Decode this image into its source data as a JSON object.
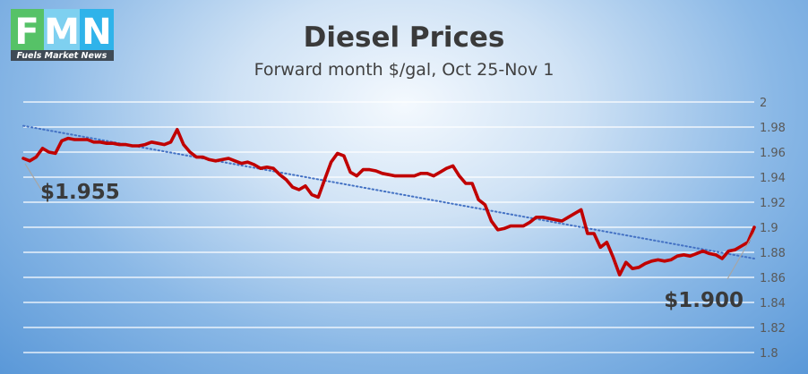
{
  "logo": {
    "letters": [
      "F",
      "M",
      "N"
    ],
    "text": "Fuels Market News",
    "colors": [
      "#56c267",
      "#7ed0f0",
      "#2fb3ea"
    ]
  },
  "chart_data": {
    "type": "line",
    "title": "Diesel Prices",
    "subtitle": "Forward month $/gal, Oct 25-Nov 1",
    "ylim": [
      1.8,
      2.0
    ],
    "yticks": [
      "2",
      "1.98",
      "1.96",
      "1.94",
      "1.92",
      "1.9",
      "1.88",
      "1.86",
      "1.84",
      "1.82",
      "1.8"
    ],
    "grid": true,
    "series": [
      {
        "color": "#c00000",
        "values": [
          1.955,
          1.953,
          1.956,
          1.963,
          1.96,
          1.959,
          1.969,
          1.971,
          1.97,
          1.97,
          1.97,
          1.968,
          1.968,
          1.967,
          1.967,
          1.966,
          1.966,
          1.965,
          1.965,
          1.966,
          1.968,
          1.967,
          1.966,
          1.968,
          1.978,
          1.966,
          1.96,
          1.956,
          1.956,
          1.954,
          1.953,
          1.954,
          1.955,
          1.953,
          1.951,
          1.952,
          1.95,
          1.947,
          1.948,
          1.947,
          1.942,
          1.938,
          1.932,
          1.93,
          1.933,
          1.926,
          1.924,
          1.938,
          1.952,
          1.959,
          1.957,
          1.944,
          1.941,
          1.946,
          1.946,
          1.945,
          1.943,
          1.942,
          1.941,
          1.941,
          1.941,
          1.941,
          1.943,
          1.943,
          1.941,
          1.944,
          1.947,
          1.949,
          1.941,
          1.935,
          1.935,
          1.922,
          1.918,
          1.905,
          1.898,
          1.899,
          1.901,
          1.901,
          1.901,
          1.904,
          1.908,
          1.908,
          1.907,
          1.906,
          1.905,
          1.908,
          1.911,
          1.914,
          1.895,
          1.895,
          1.884,
          1.888,
          1.876,
          1.862,
          1.872,
          1.867,
          1.868,
          1.871,
          1.873,
          1.874,
          1.873,
          1.874,
          1.877,
          1.878,
          1.877,
          1.879,
          1.881,
          1.879,
          1.878,
          1.875,
          1.881,
          1.882,
          1.885,
          1.888,
          1.9
        ]
      }
    ],
    "trendline": {
      "style": "dotted",
      "color": "#4472c4",
      "start": 1.981,
      "end": 1.875
    },
    "annotations": [
      {
        "text": "$1.955",
        "index": 0
      },
      {
        "text": "$1.900",
        "index": 114
      }
    ]
  }
}
